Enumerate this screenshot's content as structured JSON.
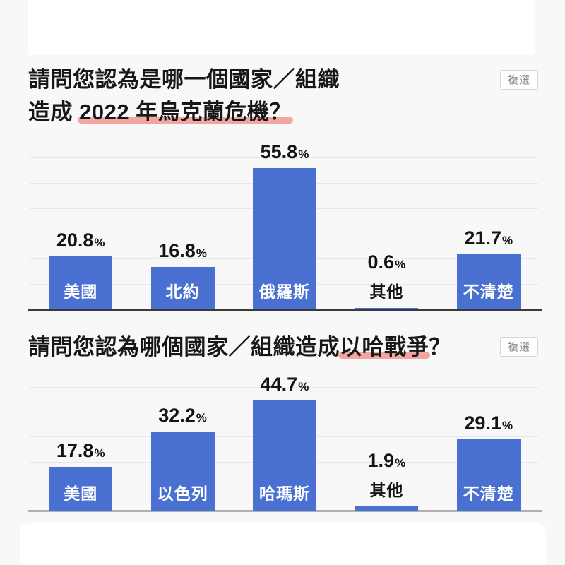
{
  "colors": {
    "page-bg": "#f8f8f8",
    "card-bg": "#ffffff",
    "bar": "#4a70d2",
    "underline": "#f1a79f",
    "grid": "#e7e7e7",
    "axis1": "#3b3b3b",
    "axis2": "#b0b0b0",
    "title": "#171717",
    "value": "#141414",
    "inbar": "#ffffff",
    "badge-text": "#82858d",
    "badge-border": "#d6d6d6"
  },
  "questions": [
    {
      "badge": "複選",
      "title_line1": "請問您認為是哪一個國家／組織",
      "title_line2_prefix": "造成 ",
      "title_line2_underlined": "2022 年烏克蘭危機？"
    },
    {
      "badge": "複選",
      "title_prefix": "請問您認為哪個國家／組織造成",
      "title_underlined": "以哈戰爭",
      "title_suffix": "？"
    }
  ],
  "chart_data": [
    {
      "type": "bar",
      "title": "請問您認為是哪一個國家／組織造成 2022 年烏克蘭危機？",
      "note": "複選",
      "categories": [
        "美國",
        "北約",
        "俄羅斯",
        "其他",
        "不清楚"
      ],
      "values": [
        20.8,
        16.8,
        55.8,
        0.6,
        21.7
      ],
      "unit": "%",
      "xlabel": "",
      "ylabel": "",
      "ylim": [
        0,
        60
      ],
      "grid_step": 10,
      "grid": true,
      "legend": false,
      "inside_label_min_value": 10
    },
    {
      "type": "bar",
      "title": "請問您認為哪個國家／組織造成以哈戰爭？",
      "note": "複選",
      "categories": [
        "美國",
        "以色列",
        "哈瑪斯",
        "其他",
        "不清楚"
      ],
      "values": [
        17.8,
        32.2,
        44.7,
        1.9,
        29.1
      ],
      "unit": "%",
      "xlabel": "",
      "ylabel": "",
      "ylim": [
        0,
        50
      ],
      "grid_step": 10,
      "grid": true,
      "legend": false,
      "inside_label_min_value": 10
    }
  ]
}
